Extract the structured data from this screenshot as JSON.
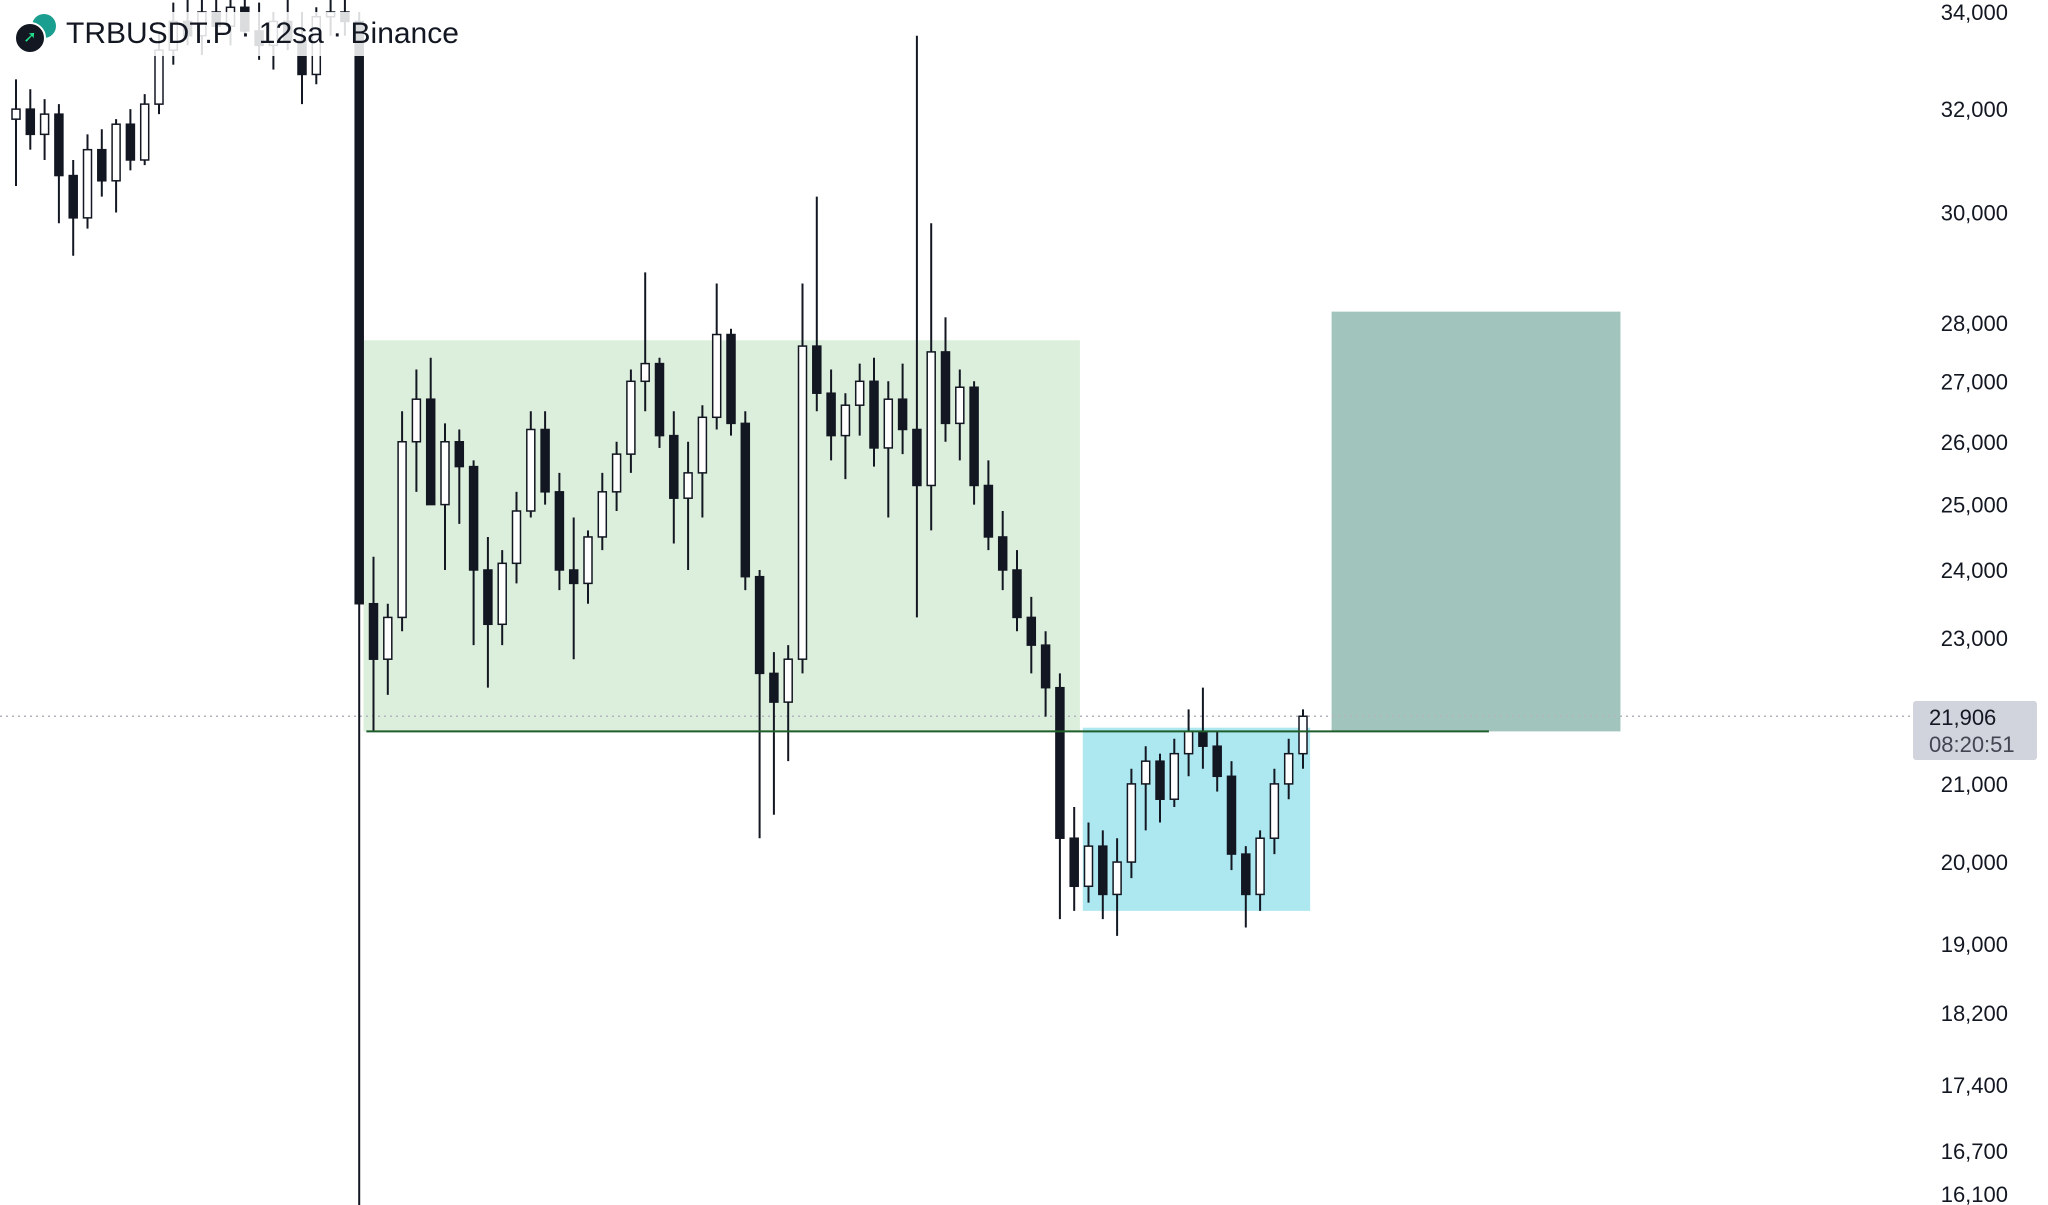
{
  "header": {
    "symbol": "TRBUSDT.P",
    "interval": "12sa",
    "exchange": "Binance",
    "separator": "·",
    "title": "TRBUSDT.P · 12sa · Binance"
  },
  "current_price": {
    "value": "21,906",
    "countdown": "08:20:51",
    "price": 21906
  },
  "colors": {
    "up_body": "#ffffff",
    "down_body": "#131722",
    "wick": "#131722",
    "supply_zone": "#dcefdc",
    "demand_zone": "#ade8f0",
    "target_zone": "#a1c4bc",
    "level_line": "#1e5e2a",
    "price_line": "#b2b5be"
  },
  "chart_data": {
    "type": "candlestick",
    "scale": "log",
    "ylim": [
      16100,
      34000
    ],
    "yticks": [
      {
        "label": "34,000",
        "value": 34000
      },
      {
        "label": "32,000",
        "value": 32000
      },
      {
        "label": "30,000",
        "value": 30000
      },
      {
        "label": "28,000",
        "value": 28000
      },
      {
        "label": "27,000",
        "value": 27000
      },
      {
        "label": "26,000",
        "value": 26000
      },
      {
        "label": "25,000",
        "value": 25000
      },
      {
        "label": "24,000",
        "value": 24000
      },
      {
        "label": "23,000",
        "value": 23000
      },
      {
        "label": "21,000",
        "value": 21000
      },
      {
        "label": "20,000",
        "value": 20000
      },
      {
        "label": "19,000",
        "value": 19000
      },
      {
        "label": "18,200",
        "value": 18200
      },
      {
        "label": "17,400",
        "value": 17400
      },
      {
        "label": "16,700",
        "value": 16700
      },
      {
        "label": "16,100",
        "value": 16100
      }
    ],
    "ohlc": [
      [
        31800,
        32600,
        30500,
        32000
      ],
      [
        32000,
        32400,
        31200,
        31500
      ],
      [
        31500,
        32200,
        31000,
        31900
      ],
      [
        31900,
        32100,
        29800,
        30700
      ],
      [
        30700,
        31000,
        29200,
        29900
      ],
      [
        29900,
        31500,
        29700,
        31200
      ],
      [
        31200,
        31600,
        30300,
        30600
      ],
      [
        30600,
        31800,
        30000,
        31700
      ],
      [
        31700,
        32000,
        30800,
        31000
      ],
      [
        31000,
        32300,
        30900,
        32100
      ],
      [
        32100,
        33600,
        31900,
        33200
      ],
      [
        33200,
        34200,
        32900,
        33800
      ],
      [
        33800,
        34500,
        33300,
        33500
      ],
      [
        33500,
        34300,
        33100,
        34000
      ],
      [
        34000,
        34600,
        33600,
        33700
      ],
      [
        33700,
        34400,
        33300,
        34100
      ],
      [
        34100,
        34500,
        33500,
        33600
      ],
      [
        33600,
        34200,
        33000,
        33300
      ],
      [
        33300,
        34000,
        32800,
        33800
      ],
      [
        33800,
        34300,
        33200,
        33400
      ],
      [
        33400,
        34000,
        32100,
        32700
      ],
      [
        32700,
        34100,
        32500,
        33900
      ],
      [
        33900,
        34500,
        33500,
        34000
      ],
      [
        34000,
        34600,
        33500,
        33800
      ],
      [
        33800,
        34000,
        15500,
        23500
      ],
      [
        23500,
        24200,
        21700,
        22700
      ],
      [
        22700,
        23500,
        22200,
        23300
      ],
      [
        23300,
        26500,
        23100,
        26000
      ],
      [
        26000,
        27200,
        25200,
        26700
      ],
      [
        26700,
        27400,
        25000,
        25000
      ],
      [
        25000,
        26300,
        24000,
        26000
      ],
      [
        26000,
        26200,
        24700,
        25600
      ],
      [
        25600,
        25700,
        22900,
        24000
      ],
      [
        24000,
        24500,
        22300,
        23200
      ],
      [
        23200,
        24300,
        22900,
        24100
      ],
      [
        24100,
        25200,
        23800,
        24900
      ],
      [
        24900,
        26500,
        24800,
        26200
      ],
      [
        26200,
        26500,
        25000,
        25200
      ],
      [
        25200,
        25500,
        23700,
        24000
      ],
      [
        24000,
        24800,
        22700,
        23800
      ],
      [
        23800,
        24600,
        23500,
        24500
      ],
      [
        24500,
        25500,
        24300,
        25200
      ],
      [
        25200,
        26000,
        24900,
        25800
      ],
      [
        25800,
        27200,
        25500,
        27000
      ],
      [
        27000,
        28900,
        26500,
        27300
      ],
      [
        27300,
        27400,
        25900,
        26100
      ],
      [
        26100,
        26500,
        24400,
        25100
      ],
      [
        25100,
        26000,
        24000,
        25500
      ],
      [
        25500,
        26600,
        24800,
        26400
      ],
      [
        26400,
        28700,
        26200,
        27800
      ],
      [
        27800,
        27900,
        26100,
        26300
      ],
      [
        26300,
        26500,
        23700,
        23900
      ],
      [
        23900,
        24000,
        20300,
        22500
      ],
      [
        22500,
        22800,
        20600,
        22100
      ],
      [
        22100,
        22900,
        21300,
        22700
      ],
      [
        22700,
        28700,
        22500,
        27600
      ],
      [
        27600,
        30300,
        26500,
        26800
      ],
      [
        26800,
        27200,
        25700,
        26100
      ],
      [
        26100,
        26800,
        25400,
        26600
      ],
      [
        26600,
        27300,
        26100,
        27000
      ],
      [
        27000,
        27400,
        25600,
        25900
      ],
      [
        25900,
        27000,
        24800,
        26700
      ],
      [
        26700,
        27300,
        25800,
        26200
      ],
      [
        26200,
        33500,
        23300,
        25300
      ],
      [
        25300,
        29800,
        24600,
        27500
      ],
      [
        27500,
        28100,
        26000,
        26300
      ],
      [
        26300,
        27200,
        25700,
        26900
      ],
      [
        26900,
        27000,
        25000,
        25300
      ],
      [
        25300,
        25700,
        24300,
        24500
      ],
      [
        24500,
        24900,
        23700,
        24000
      ],
      [
        24000,
        24300,
        23100,
        23300
      ],
      [
        23300,
        23600,
        22500,
        22900
      ],
      [
        22900,
        23100,
        21900,
        22300
      ],
      [
        22300,
        22500,
        19300,
        20300
      ],
      [
        20300,
        20700,
        19400,
        19700
      ],
      [
        19700,
        20500,
        19500,
        20200
      ],
      [
        20200,
        20400,
        19300,
        19600
      ],
      [
        19600,
        20300,
        19100,
        20000
      ],
      [
        20000,
        21200,
        19800,
        21000
      ],
      [
        21000,
        21500,
        20400,
        21300
      ],
      [
        21300,
        21400,
        20500,
        20800
      ],
      [
        20800,
        21600,
        20700,
        21400
      ],
      [
        21400,
        22000,
        21100,
        21700
      ],
      [
        21700,
        22300,
        21200,
        21500
      ],
      [
        21500,
        21700,
        20900,
        21100
      ],
      [
        21100,
        21300,
        19900,
        20100
      ],
      [
        20100,
        20200,
        19200,
        19600
      ],
      [
        19600,
        20400,
        19400,
        20300
      ],
      [
        20300,
        21200,
        20100,
        21000
      ],
      [
        21000,
        21600,
        20800,
        21400
      ],
      [
        21400,
        22000,
        21200,
        21906
      ]
    ],
    "zones": [
      {
        "name": "supply-range",
        "from_bar": 24.3,
        "to_bar": 74.4,
        "top": 27700,
        "bottom": 21700,
        "color": "#dcefdc"
      },
      {
        "name": "demand-range",
        "from_bar": 74.6,
        "to_bar": 90.5,
        "top": 21750,
        "bottom": 19400,
        "color": "#ade8f0"
      },
      {
        "name": "target-range",
        "from_bar": 92,
        "to_bar": 112.2,
        "top": 28200,
        "bottom": 21700,
        "color": "#a1c4bc"
      }
    ],
    "level_line": {
      "from_bar": 24.5,
      "to_bar": 103,
      "price": 21700
    }
  }
}
